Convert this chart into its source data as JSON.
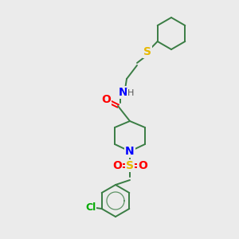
{
  "bg_color": "#ebebeb",
  "bond_color": "#3a7d44",
  "atom_colors": {
    "O": "#ff0000",
    "N": "#0000ff",
    "S_sulfonyl": "#e6b800",
    "S_thio": "#e6b800",
    "Cl": "#00aa00",
    "H": "#555555",
    "C": "#3a7d44"
  },
  "figsize": [
    3.0,
    3.0
  ],
  "dpi": 100
}
